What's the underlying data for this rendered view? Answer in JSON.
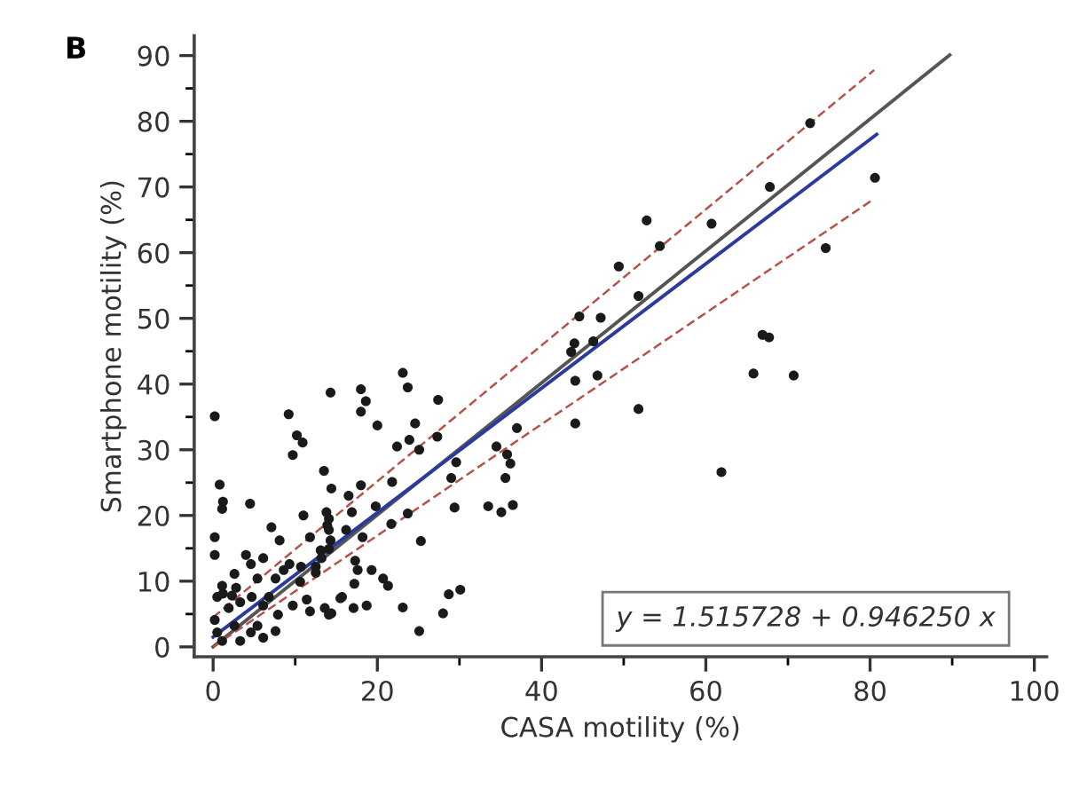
{
  "chart_data": {
    "type": "scatter",
    "xlabel": "CASA motility (%)",
    "ylabel": "Smartphone motility (%)",
    "annotations": [
      "B",
      "y = 1.515728 + 0.946250 x"
    ],
    "xlim": [
      -2.3,
      101.5
    ],
    "ylim": [
      -1.5,
      93
    ],
    "xticks": [
      0,
      {
        "value": 10,
        "label": null
      },
      20,
      {
        "value": 30,
        "label": null
      },
      40,
      {
        "value": 50,
        "label": null
      },
      60,
      {
        "value": 70,
        "label": null
      },
      80,
      {
        "value": 90,
        "label": null
      },
      100
    ],
    "yticks": [
      0,
      {
        "value": 5,
        "label": null
      },
      10,
      {
        "value": 15,
        "label": null
      },
      20,
      {
        "value": 25,
        "label": null
      },
      30,
      {
        "value": 35,
        "label": null
      },
      40,
      {
        "value": 45,
        "label": null
      },
      50,
      {
        "value": 55,
        "label": null
      },
      60,
      {
        "value": 65,
        "label": null
      },
      70,
      {
        "value": 75,
        "label": null
      },
      80,
      {
        "value": 85,
        "label": null
      },
      90
    ],
    "grid": false,
    "legend": false,
    "series": [
      {
        "color": "#1a1a1a",
        "marker": "circle",
        "x": [
          72.7,
          67.8,
          80.6,
          52.8,
          60.7,
          54.4,
          49.4,
          74.6,
          51.8,
          44.6,
          47.2,
          44.0,
          46.3,
          43.6,
          44.1,
          46.8,
          66.9,
          67.7,
          65.8,
          70.7,
          44.1,
          51.8,
          61.9,
          23.1,
          23.7,
          14.3,
          18.0,
          18.6,
          18.0,
          27.4,
          20.0,
          24.6,
          37.0,
          23.9,
          22.4,
          27.3,
          25.1,
          34.5,
          35.8,
          36.2,
          29.6,
          13.5,
          29.0,
          35.6,
          14.4,
          18.0,
          21.8,
          16.5,
          19.8,
          16.9,
          29.4,
          33.5,
          35.1,
          36.5,
          13.8,
          23.7,
          21.7,
          13.9,
          16.2,
          18.2,
          14.3,
          25.3,
          13.1,
          17.3,
          17.6,
          19.3,
          20.7,
          21.3,
          17.2,
          12.5,
          28.7,
          30.1,
          15.5,
          13.6,
          14.4,
          17.1,
          18.7,
          23.1,
          28.0,
          25.1,
          0.2,
          9.2,
          10.2,
          10.9,
          9.7,
          0.8,
          1.2,
          1.1,
          4.5,
          11.0,
          14.1,
          7.1,
          8.1,
          11.8,
          14.1,
          0.2,
          0.2,
          4.0,
          4.6,
          6.1,
          8.6,
          5.4,
          2.6,
          7.6,
          9.3,
          10.7,
          12.5,
          13.2,
          14.1,
          1.1,
          1.2,
          0.5,
          2.3,
          2.8,
          3.3,
          1.9,
          4.7,
          6.1,
          6.8,
          7.9,
          9.7,
          11.4,
          11.8,
          14.1,
          15.7,
          0.2,
          0.5,
          1.1,
          2.6,
          3.3,
          4.6,
          5.4,
          6.1,
          7.6,
          10.6
        ],
        "values": [
          79.7,
          70.0,
          71.4,
          64.9,
          64.4,
          61.0,
          57.9,
          60.7,
          53.4,
          50.3,
          50.1,
          46.2,
          46.5,
          44.9,
          40.5,
          41.3,
          47.5,
          47.1,
          41.6,
          41.3,
          34.0,
          36.2,
          26.6,
          41.7,
          39.5,
          38.7,
          39.2,
          37.4,
          35.8,
          37.6,
          33.7,
          34.0,
          33.3,
          31.5,
          30.5,
          32.0,
          30.0,
          30.5,
          29.3,
          27.9,
          28.1,
          26.8,
          25.7,
          25.7,
          24.1,
          24.6,
          25.1,
          23.0,
          21.4,
          20.5,
          21.2,
          21.4,
          20.5,
          21.6,
          20.5,
          20.3,
          18.7,
          18.5,
          17.8,
          16.7,
          16.2,
          16.1,
          14.7,
          13.1,
          11.7,
          11.7,
          10.4,
          9.3,
          9.6,
          11.3,
          8.0,
          8.7,
          7.4,
          5.9,
          5.1,
          5.9,
          6.3,
          6.0,
          5.1,
          2.4,
          35.1,
          35.4,
          32.2,
          31.1,
          29.2,
          24.7,
          22.1,
          21.0,
          21.8,
          20.0,
          19.5,
          18.2,
          16.2,
          16.7,
          17.8,
          16.7,
          14.0,
          14.0,
          12.6,
          13.5,
          11.7,
          10.4,
          11.1,
          10.4,
          12.6,
          12.2,
          12.2,
          13.5,
          14.9,
          9.3,
          8.1,
          7.6,
          7.8,
          9.0,
          6.8,
          5.9,
          7.6,
          6.3,
          7.6,
          4.9,
          6.3,
          7.2,
          5.4,
          4.9,
          7.6,
          4.1,
          2.2,
          0.9,
          3.2,
          0.9,
          2.2,
          3.2,
          1.4,
          2.4,
          9.9
        ]
      },
      {
        "type": "line",
        "color": "#555555",
        "line_style": "solid",
        "x": [
          0,
          89.7
        ],
        "values": [
          0,
          90.1
        ]
      },
      {
        "type": "line",
        "color": "#b5524a",
        "line_style": "dashed",
        "x": [
          0,
          80.5
        ],
        "values": [
          4.5,
          87.8
        ]
      },
      {
        "type": "line",
        "color": "#b5524a",
        "line_style": "dashed",
        "x": [
          0,
          80.5
        ],
        "values": [
          0,
          68.2
        ]
      },
      {
        "type": "line",
        "color": "#2b3a9e",
        "line_style": "solid",
        "x": [
          0,
          80.8
        ],
        "values": [
          1.5,
          78.0
        ]
      }
    ]
  }
}
